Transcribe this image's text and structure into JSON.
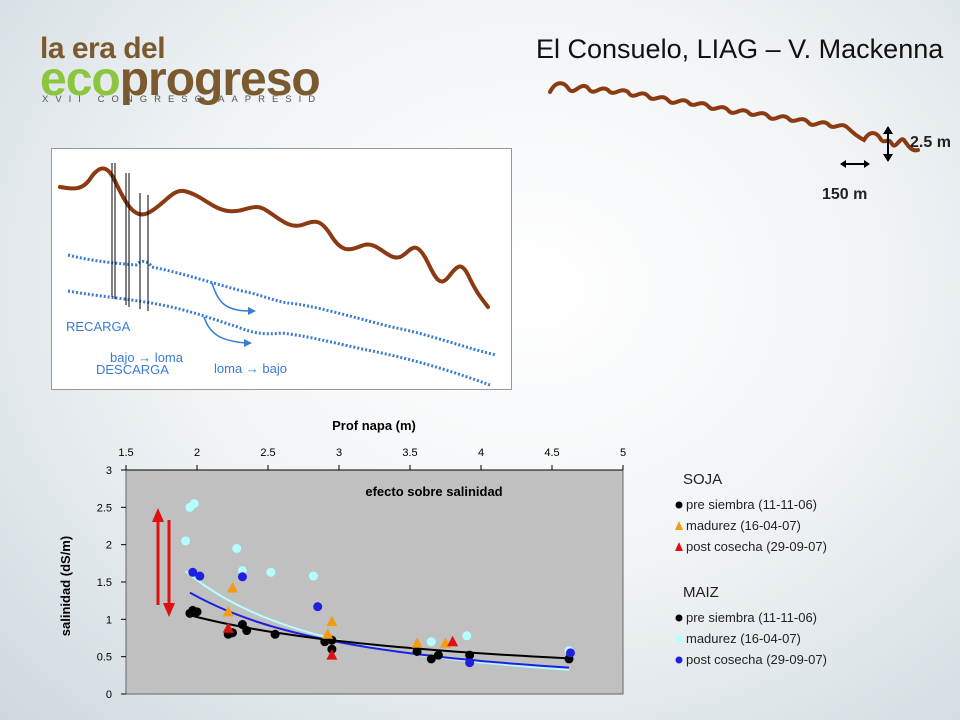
{
  "logo": {
    "line1": "la era del",
    "eco": "eco",
    "progreso": "progreso",
    "line3": "XVII CONGRESO AAPRESID"
  },
  "header": {
    "title": "El Consuelo, LIAG – V. Mackenna"
  },
  "profile_scale": {
    "height_label": "2.5 m",
    "width_label": "150 m"
  },
  "section": {
    "recarga": "RECARGA",
    "descarga": "DESCARGA",
    "bajo_loma": "bajo → loma",
    "loma_bajo": "loma → bajo"
  },
  "colors": {
    "soil_line": "#8b3a12",
    "water_table": "#3a7bd5",
    "plot_bg": "#c0c0c0",
    "black": "#000000",
    "light_blue": "#b3ffff",
    "blue": "#1f1fe0",
    "orange": "#f39c12",
    "red": "#e01010"
  },
  "chart_data": {
    "type": "scatter",
    "title": "efecto sobre salinidad",
    "xlabel": "Prof napa (m)",
    "ylabel": "salinidad (dS/m)",
    "xlim": [
      1.5,
      5
    ],
    "ylim": [
      0,
      3
    ],
    "xticks": [
      "1.5",
      "2",
      "2.5",
      "3",
      "3.5",
      "4",
      "4.5",
      "5"
    ],
    "yticks": [
      "0",
      "0.5",
      "1",
      "1.5",
      "2",
      "2.5",
      "3"
    ],
    "x_axis_position": "top",
    "grid": false,
    "legend_groups": [
      {
        "title": "SOJA",
        "entries": [
          {
            "label": "pre siembra (11-11-06)",
            "marker": "circle",
            "color": "#000000"
          },
          {
            "label": "madurez (16-04-07)",
            "marker": "triangle",
            "color": "#f39c12"
          },
          {
            "label": "post cosecha (29-09-07)",
            "marker": "triangle",
            "color": "#e01010"
          }
        ]
      },
      {
        "title": "MAIZ",
        "entries": [
          {
            "label": "pre siembra (11-11-06)",
            "marker": "circle",
            "color": "#000000"
          },
          {
            "label": "madurez (16-04-07)",
            "marker": "circle",
            "color": "#b3ffff"
          },
          {
            "label": "post cosecha (29-09-07)",
            "marker": "circle",
            "color": "#1f1fe0"
          }
        ]
      }
    ],
    "series": [
      {
        "marker": "circle",
        "color": "#000000",
        "x": [
          1.95,
          1.97,
          2.0,
          2.22,
          2.25,
          2.32,
          2.35,
          2.55,
          2.9,
          2.95,
          2.95,
          3.55,
          3.65,
          3.7,
          3.92,
          4.62
        ],
        "y": [
          1.08,
          1.12,
          1.1,
          0.8,
          0.82,
          0.93,
          0.85,
          0.8,
          0.7,
          0.6,
          0.72,
          0.57,
          0.47,
          0.52,
          0.52,
          0.47
        ]
      },
      {
        "marker": "circle",
        "color": "#b3ffff",
        "x": [
          1.92,
          1.95,
          1.98,
          2.28,
          2.32,
          2.52,
          2.82,
          3.65,
          3.9,
          4.62
        ],
        "y": [
          2.05,
          2.5,
          2.55,
          1.95,
          1.65,
          1.63,
          1.58,
          0.7,
          0.78,
          0.58
        ]
      },
      {
        "marker": "circle",
        "color": "#1f1fe0",
        "x": [
          1.97,
          2.02,
          2.32,
          2.85,
          3.92,
          4.63
        ],
        "y": [
          1.63,
          1.58,
          1.57,
          1.17,
          0.42,
          0.55
        ]
      },
      {
        "marker": "triangle",
        "color": "#f39c12",
        "x": [
          2.22,
          2.25,
          2.92,
          2.95,
          3.55,
          3.75
        ],
        "y": [
          1.1,
          1.42,
          0.8,
          0.97,
          0.68,
          0.68
        ]
      },
      {
        "marker": "triangle",
        "color": "#e01010",
        "x": [
          2.22,
          2.95,
          3.8
        ],
        "y": [
          0.88,
          0.52,
          0.7
        ]
      }
    ],
    "trendlines": [
      {
        "color": "#b3ffff",
        "x": [
          1.92,
          4.62
        ],
        "model": "power",
        "a": 5.5,
        "b": -1.85
      },
      {
        "color": "#1f1fe0",
        "x": [
          1.95,
          4.62
        ],
        "model": "power",
        "a": 3.85,
        "b": -1.56
      },
      {
        "color": "#000000",
        "x": [
          1.95,
          4.62
        ],
        "model": "power",
        "a": 1.95,
        "b": -0.92
      }
    ]
  }
}
